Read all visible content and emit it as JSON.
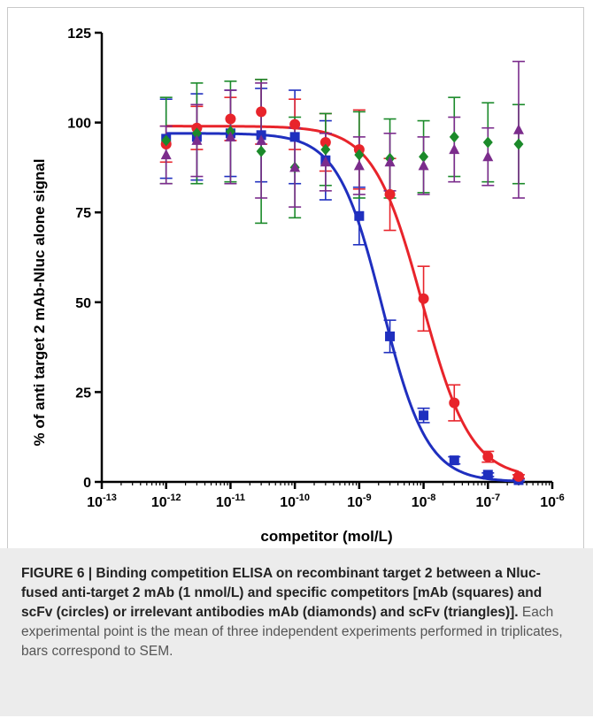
{
  "chart_data": {
    "type": "scatter",
    "xlabel": "competitor (mol/L)",
    "ylabel": "% of anti target 2 mAb-Nluc alone signal",
    "x_scale": "log",
    "xlim": [
      1e-13,
      1e-06
    ],
    "ylim": [
      0,
      125
    ],
    "y_ticks": [
      0,
      25,
      50,
      75,
      100,
      125
    ],
    "x_ticks": [
      {
        "value": 1e-13,
        "base": "10",
        "exp": "-13"
      },
      {
        "value": 1e-12,
        "base": "10",
        "exp": "-12"
      },
      {
        "value": 1e-11,
        "base": "10",
        "exp": "-11"
      },
      {
        "value": 1e-10,
        "base": "10",
        "exp": "-10"
      },
      {
        "value": 1e-09,
        "base": "10",
        "exp": "-9"
      },
      {
        "value": 1e-08,
        "base": "10",
        "exp": "-8"
      },
      {
        "value": 1e-07,
        "base": "10",
        "exp": "-7"
      },
      {
        "value": 1e-06,
        "base": "10",
        "exp": "-6"
      }
    ],
    "grid": false,
    "series": [
      {
        "marker": "square",
        "color": "#1f2fbf",
        "fit": {
          "top": 97,
          "bottom": 0,
          "ec50": 2.3e-09,
          "hill": 1.25
        },
        "points": [
          {
            "x": 1e-12,
            "y": 95.5,
            "err": 11
          },
          {
            "x": 3e-12,
            "y": 96,
            "err": 12
          },
          {
            "x": 1e-11,
            "y": 97,
            "err": 12
          },
          {
            "x": 3e-11,
            "y": 96.5,
            "err": 13
          },
          {
            "x": 1e-10,
            "y": 96,
            "err": 13
          },
          {
            "x": 3e-10,
            "y": 89.5,
            "err": 11
          },
          {
            "x": 1e-09,
            "y": 74,
            "err": 8
          },
          {
            "x": 3e-09,
            "y": 40.5,
            "err": 4.5
          },
          {
            "x": 1e-08,
            "y": 18.5,
            "err": 2
          },
          {
            "x": 3e-08,
            "y": 6,
            "err": 1
          },
          {
            "x": 1e-07,
            "y": 2,
            "err": 0.5
          },
          {
            "x": 3e-07,
            "y": 0.5,
            "err": 0.3
          }
        ]
      },
      {
        "marker": "circle",
        "color": "#e8242b",
        "fit": {
          "top": 99,
          "bottom": 1,
          "ec50": 9.5e-09,
          "hill": 1.15
        },
        "points": [
          {
            "x": 1e-12,
            "y": 94,
            "err": 5
          },
          {
            "x": 3e-12,
            "y": 98.5,
            "err": 6
          },
          {
            "x": 1e-11,
            "y": 101,
            "err": 6
          },
          {
            "x": 3e-11,
            "y": 103,
            "err": 9
          },
          {
            "x": 1e-10,
            "y": 99.5,
            "err": 7
          },
          {
            "x": 3e-10,
            "y": 94.5,
            "err": 8
          },
          {
            "x": 1e-09,
            "y": 92.5,
            "err": 11
          },
          {
            "x": 3e-09,
            "y": 80,
            "err": 10
          },
          {
            "x": 1e-08,
            "y": 51,
            "err": 9
          },
          {
            "x": 3e-08,
            "y": 22,
            "err": 5
          },
          {
            "x": 1e-07,
            "y": 7,
            "err": 1.5
          },
          {
            "x": 3e-07,
            "y": 1.5,
            "err": 0.5
          }
        ]
      },
      {
        "marker": "diamond",
        "color": "#1b8a2a",
        "fit": null,
        "points": [
          {
            "x": 1e-12,
            "y": 95,
            "err": 12
          },
          {
            "x": 3e-12,
            "y": 97,
            "err": 14
          },
          {
            "x": 1e-11,
            "y": 97.5,
            "err": 14
          },
          {
            "x": 3e-11,
            "y": 92,
            "err": 20
          },
          {
            "x": 1e-10,
            "y": 87.5,
            "err": 14
          },
          {
            "x": 3e-10,
            "y": 92.5,
            "err": 10
          },
          {
            "x": 1e-09,
            "y": 91,
            "err": 12
          },
          {
            "x": 3e-09,
            "y": 90,
            "err": 11
          },
          {
            "x": 1e-08,
            "y": 90.5,
            "err": 10
          },
          {
            "x": 3e-08,
            "y": 96,
            "err": 11
          },
          {
            "x": 1e-07,
            "y": 94.5,
            "err": 11
          },
          {
            "x": 3e-07,
            "y": 94,
            "err": 11
          }
        ]
      },
      {
        "marker": "triangle",
        "color": "#7b2c8c",
        "fit": null,
        "points": [
          {
            "x": 1e-12,
            "y": 91,
            "err": 8
          },
          {
            "x": 3e-12,
            "y": 95,
            "err": 10
          },
          {
            "x": 1e-11,
            "y": 96,
            "err": 13
          },
          {
            "x": 3e-11,
            "y": 95,
            "err": 16
          },
          {
            "x": 1e-10,
            "y": 87.5,
            "err": 11
          },
          {
            "x": 3e-10,
            "y": 89,
            "err": 8
          },
          {
            "x": 1e-09,
            "y": 88,
            "err": 8
          },
          {
            "x": 3e-09,
            "y": 89,
            "err": 8
          },
          {
            "x": 1e-08,
            "y": 88,
            "err": 8
          },
          {
            "x": 3e-08,
            "y": 92.5,
            "err": 9
          },
          {
            "x": 1e-07,
            "y": 90.5,
            "err": 8
          },
          {
            "x": 3e-07,
            "y": 98,
            "err": 19
          }
        ]
      }
    ]
  },
  "caption": {
    "title": "FIGURE 6 | Binding competition ELISA on recombinant target 2 between a Nluc-fused anti-target 2 mAb (1 nmol/L) and specific competitors [mAb (squares) and scFv (circles) or irrelevant antibodies mAb (diamonds) and scFv (triangles)].",
    "body": " Each experimental point is the mean of three independent experiments performed in triplicates, bars correspond to SEM."
  }
}
